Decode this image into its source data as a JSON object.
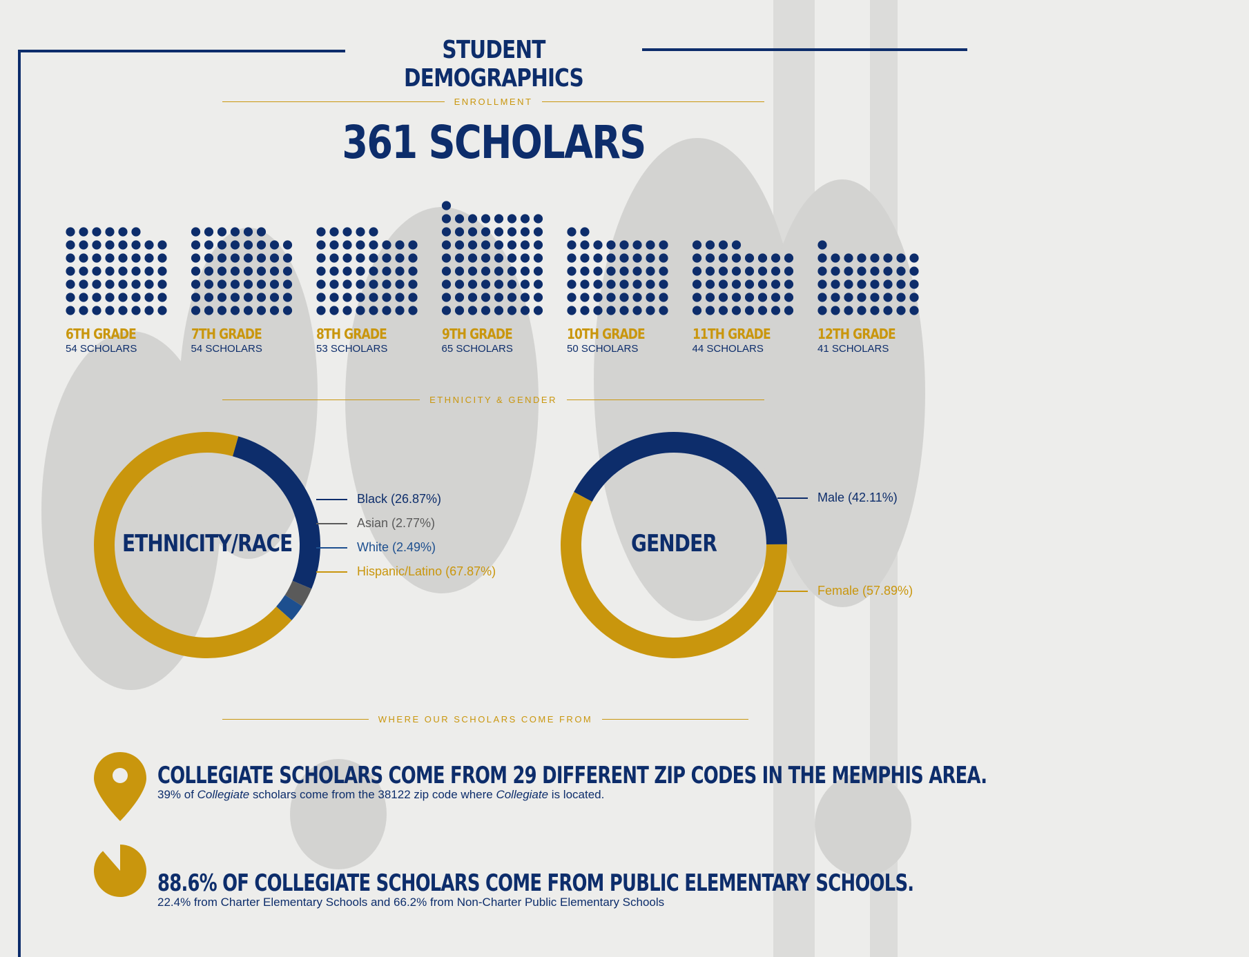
{
  "title": "STUDENT DEMOGRAPHICS",
  "enrollment": {
    "section_label": "ENROLLMENT",
    "total_label": "361 SCHOLARS"
  },
  "colors": {
    "navy": "#0d2d6b",
    "gold": "#c9960d",
    "gray": "#5a5a5a",
    "blue": "#1d4f8f"
  },
  "chart_data": [
    {
      "type": "bar",
      "title": "361 SCHOLARS",
      "categories": [
        "6TH GRADE",
        "7TH GRADE",
        "8TH GRADE",
        "9TH GRADE",
        "10TH GRADE",
        "11TH GRADE",
        "12TH GRADE"
      ],
      "values": [
        54,
        54,
        53,
        65,
        50,
        44,
        41
      ],
      "value_labels": [
        "54 SCHOLARS",
        "54 SCHOLARS",
        "53 SCHOLARS",
        "65 SCHOLARS",
        "50 SCHOLARS",
        "44 SCHOLARS",
        "41 SCHOLARS"
      ],
      "unit": "scholars (one dot per scholar)"
    },
    {
      "type": "pie",
      "title": "ETHNICITY/RACE",
      "labels": [
        "Black (26.87%)",
        "Asian (2.77%)",
        "White (2.49%)",
        "Hispanic/Latino (67.87%)"
      ],
      "values": [
        26.87,
        2.77,
        2.49,
        67.87
      ],
      "colors": [
        "#0d2d6b",
        "#5a5a5a",
        "#1d4f8f",
        "#c9960d"
      ]
    },
    {
      "type": "pie",
      "title": "GENDER",
      "labels": [
        "Male (42.11%)",
        "Female (57.89%)"
      ],
      "values": [
        42.11,
        57.89
      ],
      "colors": [
        "#0d2d6b",
        "#c9960d"
      ]
    }
  ],
  "ethnicity_section_label": "ETHNICITY & GENDER",
  "origin": {
    "section_label": "WHERE OUR SCHOLARS COME FROM",
    "zip_headline": "COLLEGIATE SCHOLARS COME FROM 29 DIFFERENT ZIP CODES IN THE MEMPHIS AREA.",
    "zip_sub_1": "39% of ",
    "zip_sub_italic_1": "Collegiate",
    "zip_sub_2": " scholars come from the 38122 zip code where ",
    "zip_sub_italic_2": "Collegiate",
    "zip_sub_3": " is located.",
    "zip_icon": "map-pin-icon",
    "schools_headline": "88.6% OF COLLEGIATE SCHOLARS COME FROM PUBLIC ELEMENTARY SCHOOLS.",
    "schools_sub": "22.4% from Charter Elementary Schools and 66.2% from Non-Charter Public Elementary Schools",
    "schools_icon": "pie-slice-icon",
    "schools_percent": 88.6
  }
}
